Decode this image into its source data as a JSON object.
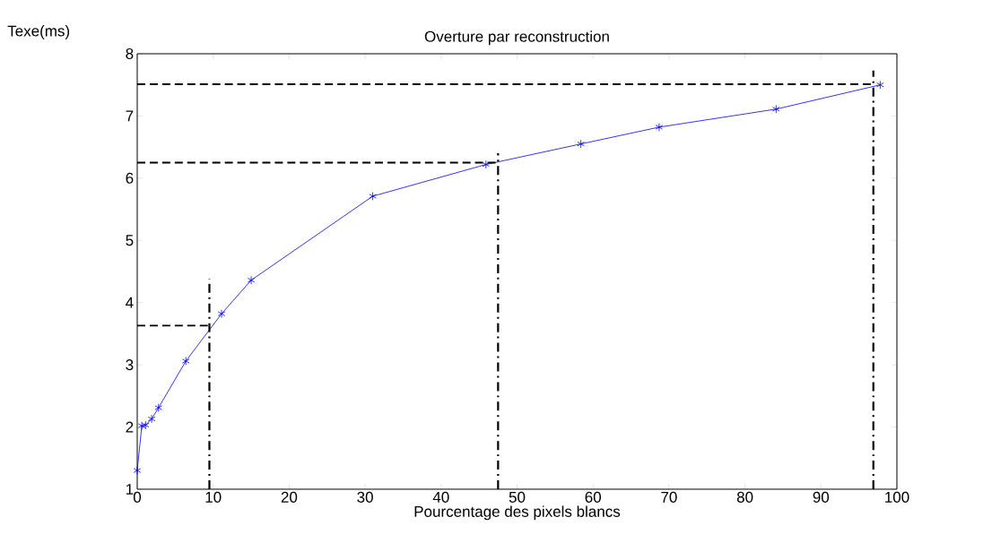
{
  "chart_data": {
    "type": "line",
    "title": "Overture par reconstruction",
    "xlabel": "Pourcentage des pixels blancs",
    "ylabel": "Texe(ms)",
    "xlim": [
      0,
      100
    ],
    "ylim": [
      1,
      8
    ],
    "xticks": [
      0,
      10,
      20,
      30,
      40,
      50,
      60,
      70,
      80,
      90,
      100
    ],
    "yticks": [
      1,
      2,
      3,
      4,
      5,
      6,
      7,
      8
    ],
    "series": [
      {
        "color": "#0000ff",
        "marker": "cross",
        "line_style": "solid",
        "x": [
          0,
          0.6,
          1.1,
          1.9,
          2.8,
          6.4,
          11.1,
          15.0,
          31.0,
          45.9,
          58.4,
          68.7,
          84.1,
          97.8
        ],
        "values": [
          1.3,
          2.02,
          2.03,
          2.13,
          2.31,
          3.06,
          3.82,
          4.36,
          5.71,
          6.22,
          6.55,
          6.82,
          7.11,
          7.5
        ]
      },
      {
        "color": "#000000",
        "marker": "none",
        "line_style": "dashed",
        "x": [
          0,
          9.5
        ],
        "values": [
          3.63,
          3.63
        ]
      },
      {
        "color": "#000000",
        "marker": "none",
        "line_style": "dashdot",
        "x": [
          9.5,
          9.5
        ],
        "values": [
          1,
          4.38
        ]
      },
      {
        "color": "#000000",
        "marker": "none",
        "line_style": "dashed",
        "x": [
          0,
          47.5
        ],
        "values": [
          6.25,
          6.25
        ]
      },
      {
        "color": "#000000",
        "marker": "none",
        "line_style": "dashdot",
        "x": [
          47.5,
          47.5
        ],
        "values": [
          1,
          6.4
        ]
      },
      {
        "color": "#000000",
        "marker": "none",
        "line_style": "dashed",
        "x": [
          0,
          96.9
        ],
        "values": [
          7.51,
          7.51
        ]
      },
      {
        "color": "#000000",
        "marker": "none",
        "line_style": "dashdot",
        "x": [
          96.9,
          96.9
        ],
        "values": [
          1,
          7.73
        ]
      }
    ]
  }
}
